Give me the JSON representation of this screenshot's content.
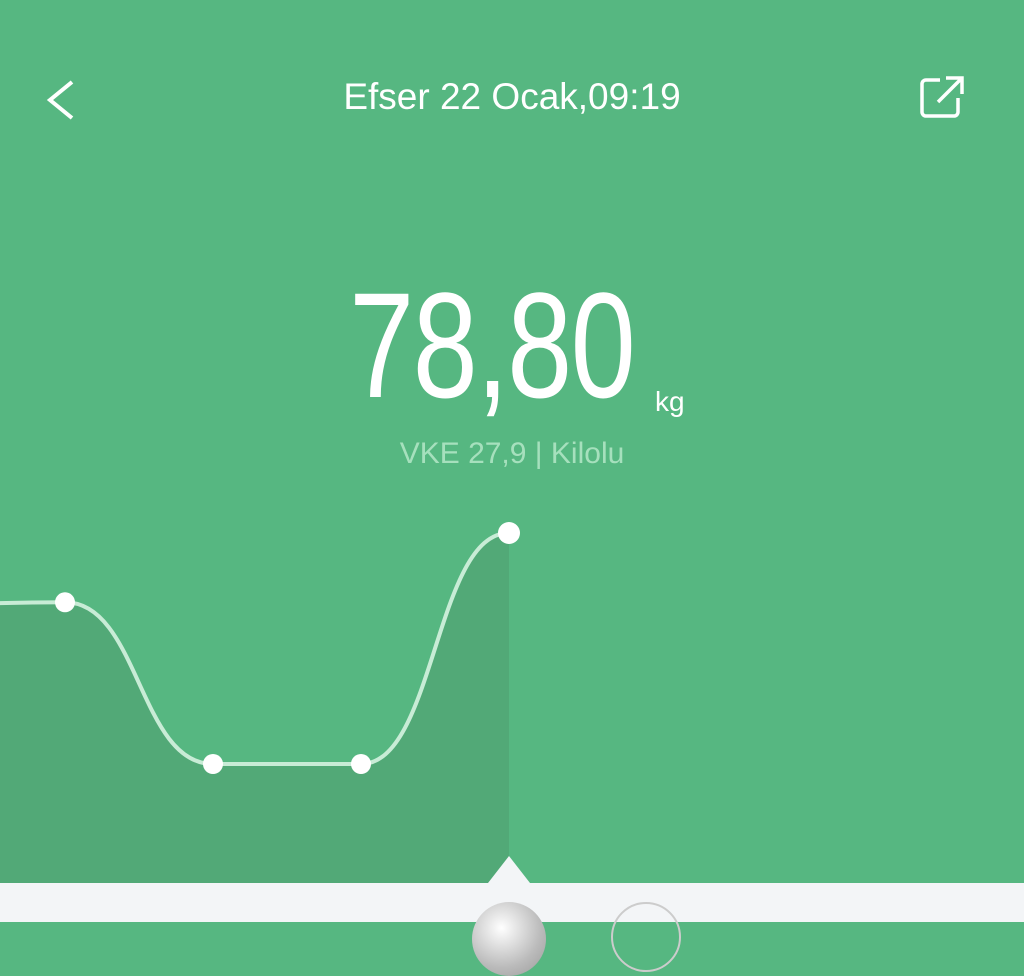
{
  "header": {
    "title": "Efser 22 Ocak,09:19",
    "back_icon": "chevron-left-icon",
    "share_icon": "share-icon"
  },
  "measurement": {
    "weight": "78,80",
    "unit": "kg",
    "bmi_text": "VKE 27,9 | Kilolu"
  },
  "colors": {
    "background": "#56b781",
    "history_fill": "#52a977",
    "line": "#c8ecd6",
    "bottom_bar": "#f3f5f7"
  },
  "trend": {
    "relative_levels": [
      0.69,
      0.7,
      0.0,
      0.0,
      1.0
    ],
    "selected_index": 4
  }
}
